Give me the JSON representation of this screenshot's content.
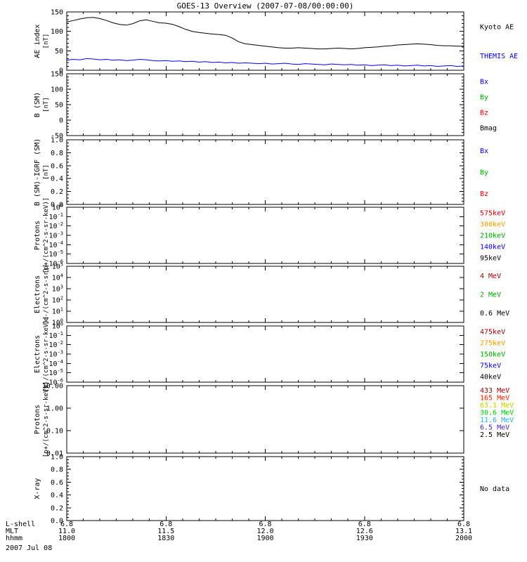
{
  "title": "GOES-13 Overview (2007-07-08/00:00:00)",
  "panels": [
    {
      "name": "ae-index",
      "ylabel": "AE index",
      "yunits": "[nT]",
      "scale": "linear",
      "ylim": [
        0,
        150
      ],
      "yticks": [
        "150",
        "100",
        "50",
        "0"
      ],
      "yminor": 4,
      "legend": [
        {
          "label": "Kyoto AE",
          "color": "#000000"
        },
        {
          "label": "THEMIS AE",
          "color": "#0000ff"
        }
      ]
    },
    {
      "name": "b-sm",
      "ylabel": "B (SM)",
      "yunits": "[nT]",
      "scale": "linear",
      "ylim": [
        -50,
        150
      ],
      "yticks": [
        "150",
        "100",
        "50",
        "0",
        "-50"
      ],
      "yminor": 4,
      "legend": [
        {
          "label": "Bx",
          "color": "#0000ff"
        },
        {
          "label": "By",
          "color": "#00aa00"
        },
        {
          "label": "Bz",
          "color": "#ff0000"
        },
        {
          "label": "Bmag",
          "color": "#000000"
        }
      ]
    },
    {
      "name": "b-sm-igrf",
      "ylabel": "B (SM)-IGRF (SM)",
      "yunits": "[nT]",
      "scale": "linear",
      "ylim": [
        0,
        1
      ],
      "yticks": [
        "1.0",
        "0.8",
        "0.6",
        "0.4",
        "0.2",
        "0.0"
      ],
      "yminor": 3,
      "legend": [
        {
          "label": "Bx",
          "color": "#0000ff"
        },
        {
          "label": "By",
          "color": "#00aa00"
        },
        {
          "label": "Bz",
          "color": "#ff0000"
        }
      ]
    },
    {
      "name": "protons-kev",
      "ylabel": "Protons",
      "yunits": "[p+/(cm^2-s-sr-keV)]",
      "scale": "log",
      "yticks": [
        "10^0",
        "10^-1",
        "10^-2",
        "10^-3",
        "10^-4",
        "10^-5",
        "10^-6"
      ],
      "legend": [
        {
          "label": "575keV",
          "color": "#dd0000"
        },
        {
          "label": "300keV",
          "color": "#ff9900"
        },
        {
          "label": "210keV",
          "color": "#00aa00"
        },
        {
          "label": "140keV",
          "color": "#0000ff"
        },
        {
          "label": "95keV",
          "color": "#000000"
        }
      ]
    },
    {
      "name": "electrons-mev",
      "ylabel": "Electrons",
      "yunits": "[e-/(cm^2-s-sr)]",
      "scale": "log",
      "yticks": [
        "10^5",
        "10^4",
        "10^3",
        "10^2",
        "10^1",
        "10^0"
      ],
      "legend": [
        {
          "label": "4 MeV",
          "color": "#990000"
        },
        {
          "label": "2 MeV",
          "color": "#00aa00"
        },
        {
          "label": "0.6 MeV",
          "color": "#000000"
        }
      ]
    },
    {
      "name": "electrons-kev",
      "ylabel": "Electrons",
      "yunits": "[e-/(cm^2-s-sr-keV)]",
      "scale": "log",
      "yticks": [
        "10^0",
        "10^-1",
        "10^-2",
        "10^-3",
        "10^-4",
        "10^-5",
        "10^-6"
      ],
      "legend": [
        {
          "label": "475keV",
          "color": "#990000"
        },
        {
          "label": "275keV",
          "color": "#ff9900"
        },
        {
          "label": "150keV",
          "color": "#00aa00"
        },
        {
          "label": "75keV",
          "color": "#0000ff"
        },
        {
          "label": "40keV",
          "color": "#000000"
        }
      ]
    },
    {
      "name": "protons-mev",
      "ylabel": "Protons",
      "yunits": "[p+/(cm^2-s-sr-keV)]",
      "scale": "log",
      "yticks": [
        "10.00",
        "1.00",
        "0.10",
        "0.01"
      ],
      "legend_packed": true,
      "legend": [
        {
          "label": "433 MeV",
          "color": "#990000"
        },
        {
          "label": "165 MeV",
          "color": "#ff2200"
        },
        {
          "label": "63.1 MeV",
          "color": "#cccc00"
        },
        {
          "label": "30.6 MeV",
          "color": "#00cc00"
        },
        {
          "label": "11.6 MeV",
          "color": "#33aaff"
        },
        {
          "label": "6.5 MeV",
          "color": "#4422cc"
        },
        {
          "label": "2.5 MeV",
          "color": "#000000"
        }
      ]
    },
    {
      "name": "x-ray",
      "ylabel": "X-ray",
      "yunits": "",
      "scale": "linear",
      "ylim": [
        0,
        1
      ],
      "yticks": [
        "1.0",
        "0.8",
        "0.6",
        "0.4",
        "0.2",
        "0.0"
      ],
      "yminor": 3,
      "legend": [
        {
          "label": "No data",
          "color": "#000000"
        }
      ]
    }
  ],
  "xaxis": {
    "rows": [
      {
        "label": "L-shell",
        "values": [
          "6.8",
          "6.8",
          "6.8",
          "6.8",
          "6.8"
        ]
      },
      {
        "label": "MLT",
        "values": [
          "11.0",
          "11.5",
          "12.0",
          "12.6",
          "13.1"
        ]
      },
      {
        "label": "hhmm",
        "values": [
          "1800",
          "1830",
          "1900",
          "1930",
          "2000"
        ]
      }
    ],
    "date": "2007 Jul 08"
  },
  "chart_data": [
    {
      "panel": "ae-index",
      "type": "line",
      "title": "AE index [nT]",
      "ylim": [
        0,
        150
      ],
      "xlim_hhmm": [
        "1800",
        "2000"
      ],
      "x_minutes": [
        0,
        2,
        4,
        6,
        8,
        10,
        12,
        14,
        16,
        18,
        20,
        22,
        24,
        26,
        28,
        30,
        32,
        34,
        36,
        38,
        40,
        42,
        44,
        46,
        48,
        50,
        52,
        54,
        56,
        58,
        60,
        62,
        64,
        66,
        68,
        70,
        72,
        74,
        76,
        78,
        80,
        82,
        84,
        86,
        88,
        90,
        92,
        94,
        96,
        98,
        100,
        102,
        104,
        106,
        108,
        110,
        112,
        114,
        116,
        118,
        120
      ],
      "series": [
        {
          "name": "Kyoto AE",
          "color": "#000000",
          "values": [
            124,
            128,
            132,
            135,
            136,
            133,
            128,
            122,
            118,
            116,
            120,
            127,
            130,
            126,
            122,
            121,
            118,
            112,
            105,
            100,
            97,
            95,
            93,
            92,
            90,
            83,
            73,
            68,
            66,
            64,
            62,
            60,
            58,
            57,
            57,
            58,
            57,
            56,
            55,
            55,
            56,
            57,
            56,
            55,
            56,
            58,
            59,
            60,
            62,
            63,
            65,
            66,
            67,
            68,
            67,
            66,
            64,
            63,
            63,
            62,
            62
          ]
        },
        {
          "name": "THEMIS AE",
          "color": "#0000ff",
          "values": [
            26,
            28,
            27,
            30,
            29,
            27,
            28,
            26,
            27,
            25,
            26,
            28,
            27,
            25,
            24,
            25,
            23,
            24,
            22,
            23,
            21,
            22,
            20,
            21,
            19,
            20,
            18,
            19,
            18,
            17,
            18,
            16,
            17,
            18,
            16,
            15,
            17,
            16,
            15,
            14,
            16,
            15,
            14,
            15,
            13,
            14,
            12,
            13,
            14,
            12,
            13,
            11,
            12,
            13,
            11,
            12,
            10,
            11,
            12,
            10,
            11
          ]
        }
      ]
    },
    {
      "panel": "b-sm",
      "type": "line",
      "ylim": [
        -50,
        150
      ],
      "series": []
    },
    {
      "panel": "b-sm-igrf",
      "type": "line",
      "ylim": [
        0,
        1
      ],
      "series": []
    },
    {
      "panel": "protons-kev",
      "type": "line",
      "ylim_log": [
        1e-06,
        1
      ],
      "series": []
    },
    {
      "panel": "electrons-mev",
      "type": "line",
      "ylim_log": [
        1,
        100000
      ],
      "series": []
    },
    {
      "panel": "electrons-kev",
      "type": "line",
      "ylim_log": [
        1e-06,
        1
      ],
      "series": []
    },
    {
      "panel": "protons-mev",
      "type": "line",
      "ylim_log": [
        0.01,
        10
      ],
      "series": []
    },
    {
      "panel": "x-ray",
      "type": "line",
      "ylim": [
        0,
        1
      ],
      "series": [],
      "note": "No data"
    }
  ]
}
